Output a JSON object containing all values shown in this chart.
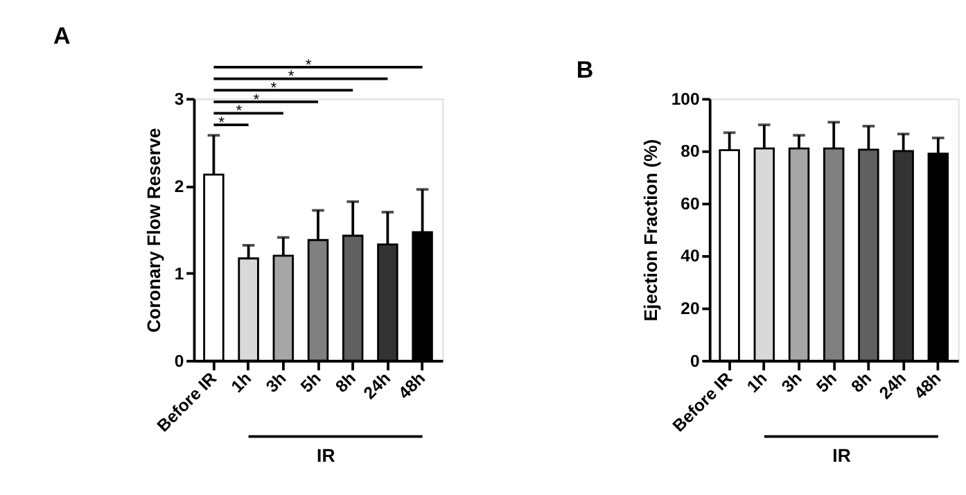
{
  "chart_data": [
    {
      "type": "bar",
      "title": "A",
      "ylabel": "Coronary Flow Reserve",
      "categories": [
        "Before IR",
        "1h",
        "3h",
        "5h",
        "8h",
        "24h",
        "48h"
      ],
      "values": [
        2.13,
        1.17,
        1.2,
        1.38,
        1.43,
        1.33,
        1.47
      ],
      "colors": [
        "#ffffff",
        "#d9d9d9",
        "#a6a6a6",
        "#808080",
        "#606060",
        "#333333",
        "#000000"
      ],
      "errors": [
        [
          2.13,
          2.58
        ],
        [
          1.17,
          1.32
        ],
        [
          1.2,
          1.41
        ],
        [
          1.38,
          1.72
        ],
        [
          1.43,
          1.82
        ],
        [
          1.33,
          1.7
        ],
        [
          1.47,
          1.96
        ]
      ],
      "ylim": [
        0,
        3
      ],
      "yticks": [
        0,
        1,
        2,
        3
      ],
      "grid": false,
      "legend": false,
      "annotations": [
        "*",
        "*",
        "*",
        "*",
        "*",
        "*",
        "IR"
      ]
    },
    {
      "type": "bar",
      "title": "B",
      "ylabel": "Ejection Fraction (%)",
      "categories": [
        "Before IR",
        "1h",
        "3h",
        "5h",
        "8h",
        "24h",
        "48h"
      ],
      "values": [
        80.3,
        81,
        81,
        81,
        80.5,
        80,
        79
      ],
      "colors": [
        "#ffffff",
        "#d9d9d9",
        "#a6a6a6",
        "#808080",
        "#606060",
        "#333333",
        "#000000"
      ],
      "errors": [
        [
          80.3,
          87
        ],
        [
          81,
          90
        ],
        [
          81,
          86
        ],
        [
          81,
          91
        ],
        [
          80.5,
          89.5
        ],
        [
          80,
          86.5
        ],
        [
          79,
          85
        ]
      ],
      "ylim": [
        0,
        100
      ],
      "yticks": [
        0,
        20,
        40,
        60,
        80,
        100
      ],
      "grid": false,
      "legend": false,
      "annotations": [
        "IR"
      ]
    }
  ]
}
